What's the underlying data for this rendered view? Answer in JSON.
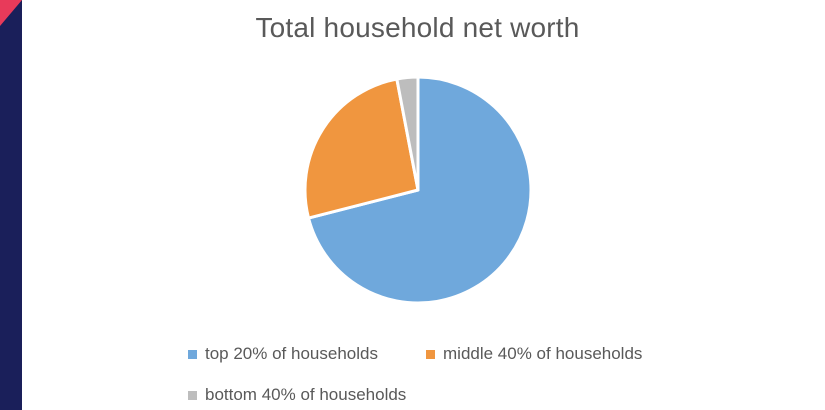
{
  "colors": {
    "sidebar": "#1a1f5a",
    "corner_accent": "#e83a5a"
  },
  "chart_data": {
    "type": "pie",
    "title": "Total household net worth",
    "legend_position": "bottom",
    "slices": [
      {
        "label": "top 20% of households",
        "value": 71,
        "color": "#6fa8dc"
      },
      {
        "label": "middle 40% of households",
        "value": 26,
        "color": "#f0963f"
      },
      {
        "label": "bottom 40% of households",
        "value": 3,
        "color": "#bdbdbd"
      }
    ]
  }
}
